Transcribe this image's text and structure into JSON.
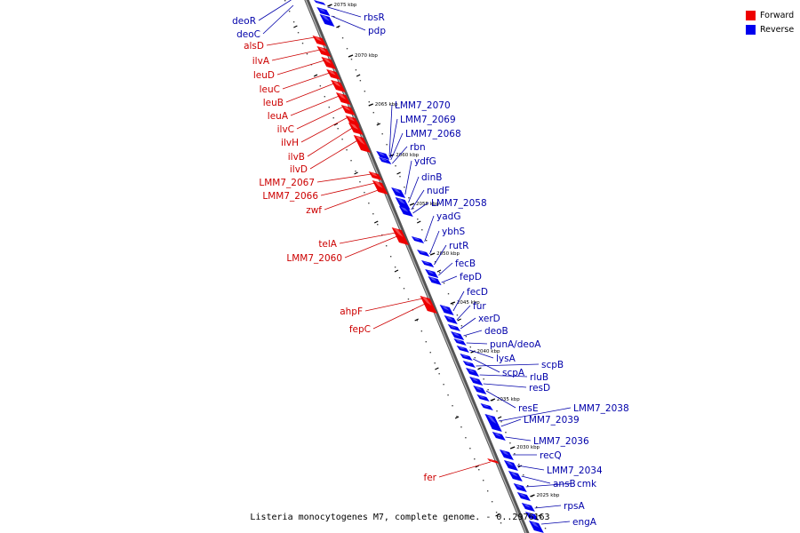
{
  "legend": {
    "forward": {
      "label": "Forward",
      "color": "#ee0000"
    },
    "reverse": {
      "label": "Reverse",
      "color": "#0000ee"
    }
  },
  "footer": "Listeria monocytogenes M7, complete genome. - 0..2976163",
  "ticks_kbp": [
    "2075 kbp",
    "2070 kbp",
    "2065 kbp",
    "2060 kbp",
    "2055 kbp",
    "2050 kbp",
    "2045 kbp",
    "2040 kbp",
    "2035 kbp",
    "2030 kbp",
    "2025 kbp"
  ],
  "forward_genes": [
    "alsD",
    "ilvA",
    "leuD",
    "leuC",
    "leuB",
    "leuA",
    "ilvC",
    "ilvH",
    "ilvB",
    "ilvD",
    "LMM7_2067",
    "LMM7_2066",
    "zwf",
    "telA",
    "LMM7_2060",
    "ahpF",
    "fepC",
    "fer"
  ],
  "reverse_genes_left": [
    "deoR",
    "deoC"
  ],
  "reverse_genes": [
    "rbsR",
    "pdp",
    "LMM7_2070",
    "LMM7_2069",
    "LMM7_2068",
    "rbn",
    "ydfG",
    "dinB",
    "nudF",
    "LMM7_2058",
    "yadG",
    "ybhS",
    "rutR",
    "fecB",
    "fepD",
    "fecD",
    "fur",
    "xerD",
    "deoB",
    "punA/deoA",
    "lysA",
    "scpA",
    "scpB",
    "rluB",
    "resD",
    "resE",
    "LMM7_2038",
    "LMM7_2039",
    "LMM7_2036",
    "recQ",
    "LMM7_2034",
    "ansB",
    "cmk",
    "rpsA",
    "engA"
  ]
}
